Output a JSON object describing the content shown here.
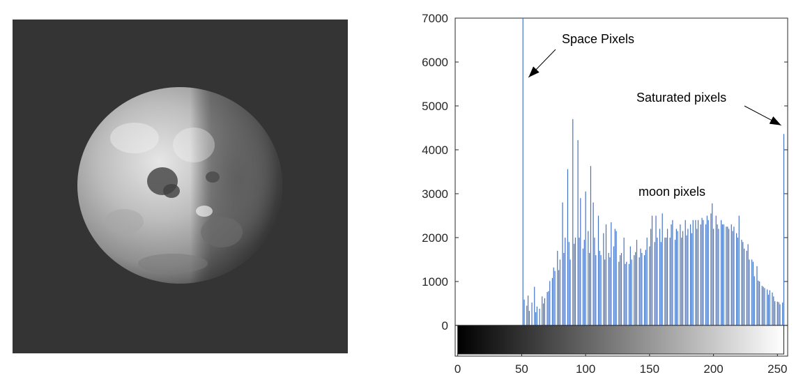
{
  "chart_data": {
    "type": "bar",
    "title": "",
    "xlabel": "",
    "ylabel": "",
    "xlim": [
      -2,
      258
    ],
    "ylim": [
      -700,
      7000
    ],
    "xticks": [
      0,
      50,
      100,
      150,
      200,
      250
    ],
    "yticks": [
      0,
      1000,
      2000,
      3000,
      4000,
      5000,
      6000,
      7000
    ],
    "bar_color": "#4472c4",
    "colorbar": {
      "type": "grayscale",
      "from": 0,
      "to": 255
    },
    "annotations": [
      {
        "text": "Space Pixels",
        "arrow_to": [
          51,
          5650
        ]
      },
      {
        "text": "Saturated pixels",
        "arrow_to": [
          254,
          4400
        ]
      },
      {
        "text": "moon pixels"
      }
    ],
    "series": [
      {
        "points": [
          {
            "x": 51,
            "y": 7000
          },
          {
            "x": 52,
            "y": 590
          },
          {
            "x": 54,
            "y": 450
          },
          {
            "x": 55,
            "y": 680
          },
          {
            "x": 56,
            "y": 330
          },
          {
            "x": 58,
            "y": 520
          },
          {
            "x": 60,
            "y": 880
          },
          {
            "x": 61,
            "y": 300
          },
          {
            "x": 62,
            "y": 430
          },
          {
            "x": 64,
            "y": 380
          },
          {
            "x": 66,
            "y": 660
          },
          {
            "x": 67,
            "y": 500
          },
          {
            "x": 68,
            "y": 620
          },
          {
            "x": 70,
            "y": 760
          },
          {
            "x": 71,
            "y": 780
          },
          {
            "x": 72,
            "y": 1010
          },
          {
            "x": 74,
            "y": 1080
          },
          {
            "x": 75,
            "y": 1320
          },
          {
            "x": 76,
            "y": 1240
          },
          {
            "x": 78,
            "y": 1700
          },
          {
            "x": 79,
            "y": 1260
          },
          {
            "x": 80,
            "y": 1500
          },
          {
            "x": 82,
            "y": 2800
          },
          {
            "x": 83,
            "y": 1650
          },
          {
            "x": 84,
            "y": 2000
          },
          {
            "x": 86,
            "y": 3560
          },
          {
            "x": 87,
            "y": 1900
          },
          {
            "x": 88,
            "y": 1500
          },
          {
            "x": 90,
            "y": 4700
          },
          {
            "x": 91,
            "y": 1860
          },
          {
            "x": 92,
            "y": 2000
          },
          {
            "x": 94,
            "y": 4220
          },
          {
            "x": 95,
            "y": 2000
          },
          {
            "x": 96,
            "y": 2900
          },
          {
            "x": 98,
            "y": 1750
          },
          {
            "x": 99,
            "y": 1950
          },
          {
            "x": 100,
            "y": 3050
          },
          {
            "x": 102,
            "y": 2150
          },
          {
            "x": 103,
            "y": 1650
          },
          {
            "x": 104,
            "y": 3630
          },
          {
            "x": 106,
            "y": 2800
          },
          {
            "x": 107,
            "y": 2000
          },
          {
            "x": 108,
            "y": 1600
          },
          {
            "x": 110,
            "y": 2500
          },
          {
            "x": 111,
            "y": 1700
          },
          {
            "x": 112,
            "y": 1600
          },
          {
            "x": 114,
            "y": 2100
          },
          {
            "x": 115,
            "y": 1500
          },
          {
            "x": 116,
            "y": 2300
          },
          {
            "x": 118,
            "y": 1650
          },
          {
            "x": 119,
            "y": 1550
          },
          {
            "x": 120,
            "y": 2350
          },
          {
            "x": 122,
            "y": 1800
          },
          {
            "x": 123,
            "y": 2200
          },
          {
            "x": 124,
            "y": 2150
          },
          {
            "x": 126,
            "y": 1450
          },
          {
            "x": 127,
            "y": 1600
          },
          {
            "x": 128,
            "y": 1650
          },
          {
            "x": 130,
            "y": 2000
          },
          {
            "x": 131,
            "y": 1400
          },
          {
            "x": 132,
            "y": 1450
          },
          {
            "x": 134,
            "y": 1400
          },
          {
            "x": 135,
            "y": 1800
          },
          {
            "x": 136,
            "y": 1500
          },
          {
            "x": 138,
            "y": 1600
          },
          {
            "x": 139,
            "y": 1670
          },
          {
            "x": 140,
            "y": 1950
          },
          {
            "x": 142,
            "y": 1550
          },
          {
            "x": 143,
            "y": 1750
          },
          {
            "x": 144,
            "y": 1650
          },
          {
            "x": 146,
            "y": 1600
          },
          {
            "x": 147,
            "y": 1720
          },
          {
            "x": 148,
            "y": 2000
          },
          {
            "x": 150,
            "y": 1800
          },
          {
            "x": 151,
            "y": 2200
          },
          {
            "x": 152,
            "y": 2500
          },
          {
            "x": 154,
            "y": 1900
          },
          {
            "x": 155,
            "y": 2500
          },
          {
            "x": 156,
            "y": 2000
          },
          {
            "x": 158,
            "y": 2200
          },
          {
            "x": 159,
            "y": 1900
          },
          {
            "x": 160,
            "y": 2550
          },
          {
            "x": 162,
            "y": 2000
          },
          {
            "x": 163,
            "y": 2000
          },
          {
            "x": 164,
            "y": 2200
          },
          {
            "x": 166,
            "y": 2000
          },
          {
            "x": 167,
            "y": 2300
          },
          {
            "x": 168,
            "y": 2400
          },
          {
            "x": 170,
            "y": 1950
          },
          {
            "x": 171,
            "y": 2200
          },
          {
            "x": 172,
            "y": 2150
          },
          {
            "x": 174,
            "y": 2300
          },
          {
            "x": 175,
            "y": 2000
          },
          {
            "x": 176,
            "y": 2150
          },
          {
            "x": 178,
            "y": 2400
          },
          {
            "x": 179,
            "y": 2050
          },
          {
            "x": 180,
            "y": 2200
          },
          {
            "x": 182,
            "y": 2300
          },
          {
            "x": 183,
            "y": 2100
          },
          {
            "x": 184,
            "y": 2400
          },
          {
            "x": 186,
            "y": 2400
          },
          {
            "x": 187,
            "y": 2200
          },
          {
            "x": 188,
            "y": 2400
          },
          {
            "x": 190,
            "y": 2300
          },
          {
            "x": 191,
            "y": 2450
          },
          {
            "x": 192,
            "y": 2400
          },
          {
            "x": 194,
            "y": 2300
          },
          {
            "x": 195,
            "y": 2500
          },
          {
            "x": 196,
            "y": 2400
          },
          {
            "x": 198,
            "y": 2550
          },
          {
            "x": 199,
            "y": 2780
          },
          {
            "x": 200,
            "y": 2200
          },
          {
            "x": 202,
            "y": 2500
          },
          {
            "x": 203,
            "y": 2300
          },
          {
            "x": 204,
            "y": 2200
          },
          {
            "x": 206,
            "y": 2400
          },
          {
            "x": 207,
            "y": 2300
          },
          {
            "x": 208,
            "y": 2300
          },
          {
            "x": 210,
            "y": 2250
          },
          {
            "x": 211,
            "y": 2250
          },
          {
            "x": 212,
            "y": 2200
          },
          {
            "x": 214,
            "y": 2300
          },
          {
            "x": 215,
            "y": 2150
          },
          {
            "x": 216,
            "y": 2250
          },
          {
            "x": 218,
            "y": 2100
          },
          {
            "x": 219,
            "y": 2000
          },
          {
            "x": 220,
            "y": 2500
          },
          {
            "x": 222,
            "y": 1950
          },
          {
            "x": 223,
            "y": 1900
          },
          {
            "x": 224,
            "y": 1750
          },
          {
            "x": 226,
            "y": 1700
          },
          {
            "x": 227,
            "y": 1850
          },
          {
            "x": 228,
            "y": 1500
          },
          {
            "x": 230,
            "y": 1500
          },
          {
            "x": 231,
            "y": 1450
          },
          {
            "x": 232,
            "y": 1120
          },
          {
            "x": 234,
            "y": 1350
          },
          {
            "x": 235,
            "y": 1020
          },
          {
            "x": 236,
            "y": 1000
          },
          {
            "x": 238,
            "y": 900
          },
          {
            "x": 239,
            "y": 880
          },
          {
            "x": 240,
            "y": 850
          },
          {
            "x": 242,
            "y": 820
          },
          {
            "x": 243,
            "y": 700
          },
          {
            "x": 244,
            "y": 800
          },
          {
            "x": 246,
            "y": 750
          },
          {
            "x": 247,
            "y": 660
          },
          {
            "x": 248,
            "y": 550
          },
          {
            "x": 250,
            "y": 540
          },
          {
            "x": 251,
            "y": 530
          },
          {
            "x": 252,
            "y": 480
          },
          {
            "x": 254,
            "y": 520
          },
          {
            "x": 255,
            "y": 4360
          }
        ]
      }
    ]
  }
}
